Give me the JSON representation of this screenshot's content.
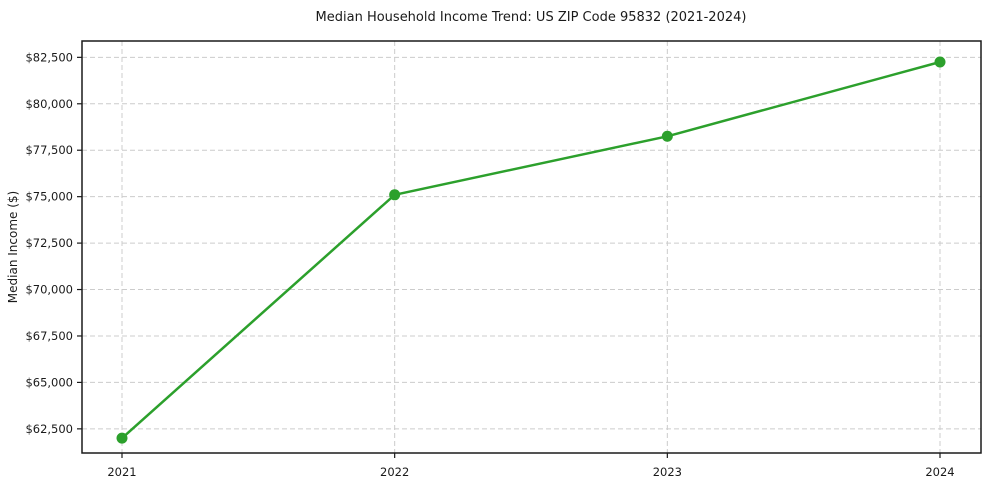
{
  "chart_data": {
    "type": "line",
    "title": "Median Household Income Trend: US ZIP Code 95832 (2021-2024)",
    "xlabel": "",
    "ylabel": "Median Income ($)",
    "categories": [
      "2021",
      "2022",
      "2023",
      "2024"
    ],
    "series": [
      {
        "name": "Median household income",
        "values": [
          62000,
          75100,
          78250,
          82250
        ]
      }
    ],
    "yticks": [
      62500,
      65000,
      67500,
      70000,
      72500,
      75000,
      77500,
      80000,
      82500
    ],
    "ytick_labels": [
      "$62,500",
      "$65,000",
      "$67,500",
      "$70,000",
      "$72,500",
      "$75,000",
      "$77,500",
      "$80,000",
      "$82,500"
    ],
    "ylim": [
      61200,
      83380
    ],
    "grid": true,
    "grid_style": "dashed",
    "legend_position": "none",
    "marker": "circle",
    "colors": {
      "line": "#2ca02c",
      "marker": "#2ca02c",
      "grid": "#cccccc",
      "spine": "#1a1a1a",
      "text": "#1a1a1a",
      "background": "#ffffff"
    }
  }
}
